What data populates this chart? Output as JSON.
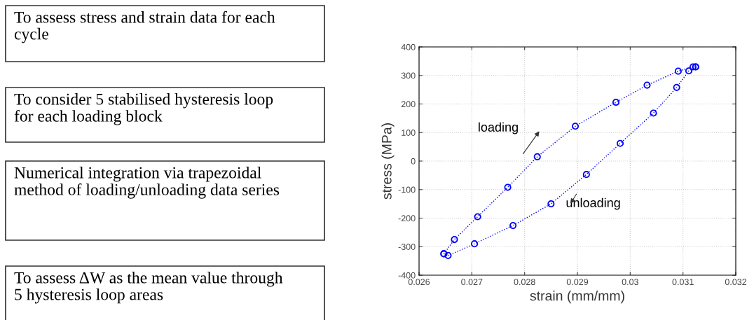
{
  "chart_data": [
    {
      "type": "other",
      "annotations": [
        "To assess stress and strain data for each cycle",
        "To consider 5 stabilised hysteresis loop for each loading block",
        "Numerical integration via trapezoidal method of loading/unloading data series",
        "To assess ΔW as the mean value through 5 hysteresis loop areas"
      ]
    },
    {
      "type": "line",
      "xlabel": "strain (mm/mm)",
      "ylabel": "stress (MPa)",
      "series": [
        {
          "color": "#0000ff",
          "x": [
            0.02647,
            0.02667,
            0.02711,
            0.02768,
            0.02824,
            0.02896,
            0.02973,
            0.03032,
            0.03091,
            0.03119,
            0.03124
          ],
          "values": [
            -325,
            -275,
            -195,
            -92,
            15,
            122,
            206,
            266,
            315,
            330,
            330
          ]
        },
        {
          "color": "#0000ff",
          "x": [
            0.03124,
            0.03111,
            0.03088,
            0.03044,
            0.02981,
            0.02917,
            0.0285,
            0.02778,
            0.02705,
            0.02655,
            0.02647
          ],
          "values": [
            330,
            316,
            258,
            168,
            62,
            -47,
            -150,
            -226,
            -290,
            -331,
            -325
          ]
        }
      ],
      "xlim": [
        0.026,
        0.032
      ],
      "xticks": [
        0.026,
        0.027,
        0.028,
        0.029,
        0.03,
        0.031,
        0.032
      ],
      "ylim": [
        -400,
        400
      ],
      "yticks": [
        -400,
        -300,
        -200,
        -100,
        0,
        100,
        200,
        300,
        400
      ],
      "grid": true,
      "marker": "circle",
      "line_style": "dotted",
      "annotations": [
        "loading",
        "unloading"
      ]
    }
  ]
}
